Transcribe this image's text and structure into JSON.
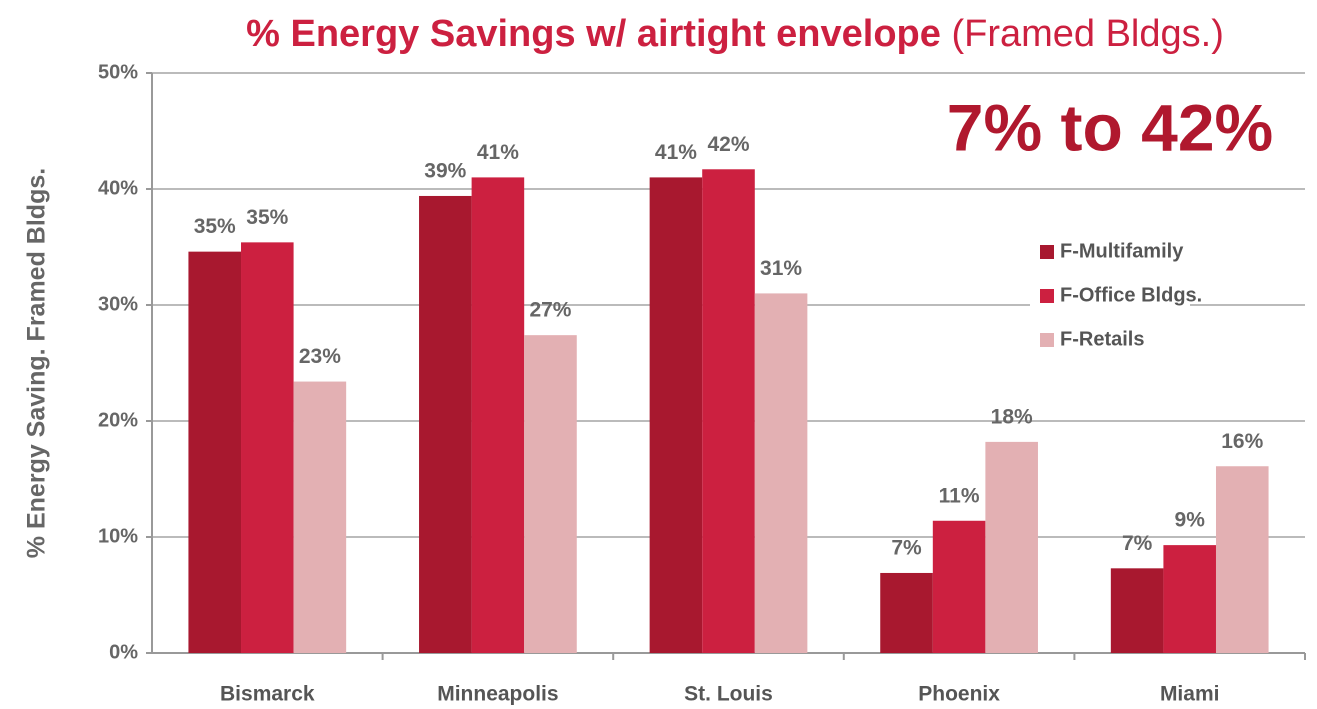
{
  "chart_data": {
    "type": "bar",
    "title": "% Energy Savings w/ airtight envelope",
    "subtitle": "(Framed Bldgs.)",
    "annotation": "7% to 42%",
    "y_label": "% Energy Saving. Framed Bldgs.",
    "categories": [
      "Bismarck",
      "Minneapolis",
      "St. Louis",
      "Phoenix",
      "Miami"
    ],
    "series": [
      {
        "name": "F-Multifamily",
        "color": "#a8182f",
        "values": [
          34.6,
          39.4,
          41.0,
          6.9,
          7.3
        ],
        "value_labels": [
          "35%",
          "39%",
          "41%",
          "7%",
          "7%"
        ]
      },
      {
        "name": "F-Office Bldgs.",
        "color": "#cc2040",
        "values": [
          35.4,
          41.0,
          41.7,
          11.4,
          9.3
        ],
        "value_labels": [
          "35%",
          "41%",
          "42%",
          "11%",
          "9%"
        ]
      },
      {
        "name": "F-Retails",
        "color": "#e3b0b3",
        "values": [
          23.4,
          27.4,
          31.0,
          18.2,
          16.1
        ],
        "value_labels": [
          "23%",
          "27%",
          "31%",
          "18%",
          "16%"
        ]
      }
    ],
    "ylim": [
      0,
      50
    ],
    "yticks": [
      {
        "value": 0,
        "label": "0%"
      },
      {
        "value": 10,
        "label": "10%"
      },
      {
        "value": 20,
        "label": "20%"
      },
      {
        "value": 30,
        "label": "30%"
      },
      {
        "value": 40,
        "label": "40%"
      },
      {
        "value": 50,
        "label": "50%"
      }
    ],
    "grid": true,
    "legend": "right"
  }
}
